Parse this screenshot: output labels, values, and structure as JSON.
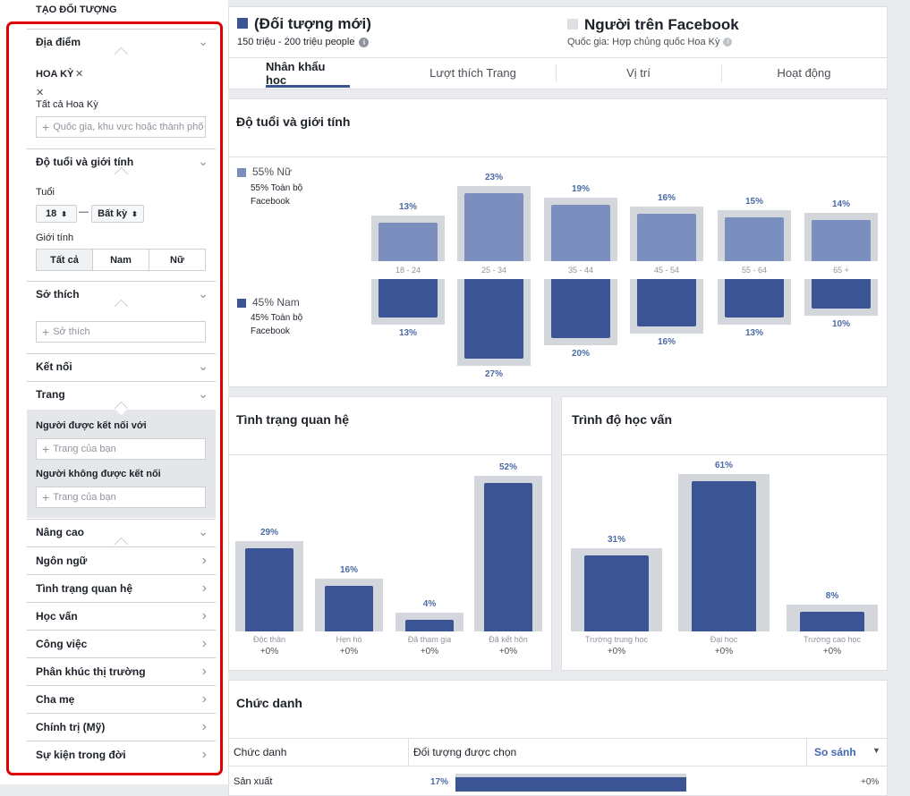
{
  "sidebar": {
    "title": "TẠO ĐỐI TƯỢNG",
    "location": {
      "header": "Địa điểm",
      "country": "HOA KỲ",
      "remove_glyph": "✕",
      "all": "Tất cả Hoa Kỳ",
      "placeholder": "Quốc gia, khu vực hoặc thành phố"
    },
    "age_gender": {
      "header": "Độ tuổi và giới tính",
      "age_label": "Tuổi",
      "age_from": "18",
      "age_to": "Bất kỳ",
      "gender_label": "Giới tính",
      "gender_options": [
        "Tất cả",
        "Nam",
        "Nữ"
      ]
    },
    "interests": {
      "header": "Sở thích",
      "placeholder": "Sở thích"
    },
    "connections": {
      "header": "Kết nối",
      "pages_header": "Trang",
      "connected_label": "Người được kết nối với",
      "connected_placeholder": "Trang của bạn",
      "not_connected_label": "Người không được kết nối",
      "not_connected_placeholder": "Trang của bạn"
    },
    "advanced": {
      "header": "Nâng cao",
      "items": [
        "Ngôn ngữ",
        "Tình trạng quan hệ",
        "Học vấn",
        "Công việc",
        "Phân khúc thị trường",
        "Cha mẹ",
        "Chính trị (Mỹ)",
        "Sự kiện trong đời"
      ]
    }
  },
  "header": {
    "audience_title": "(Đối tượng mới)",
    "audience_size": "150 triệu - 200 triệu people",
    "fb_title": "Người trên Facebook",
    "fb_sub": "Quốc gia: Hợp chủng quốc Hoa Kỳ",
    "tabs": [
      "Nhân khẩu học",
      "Lượt thích Trang",
      "Vị trí",
      "Hoạt động"
    ],
    "active_tab": "Nhân khẩu học"
  },
  "age_gender_panel": {
    "title": "Độ tuổi và giới tính",
    "female_label": "55% Nữ",
    "female_sub": "55% Toàn bộ Facebook",
    "male_label": "45% Nam",
    "male_sub": "45% Toàn bộ Facebook"
  },
  "relationship_panel": {
    "title": "Tình trạng quan hệ"
  },
  "education_panel": {
    "title": "Trình độ học vấn"
  },
  "job_panel": {
    "title": "Chức danh",
    "col1": "Chức danh",
    "col2": "Đối tượng được chọn",
    "col3": "So sánh",
    "row_label": "Sản xuất",
    "row_pct": "17%",
    "row_delta": "+0%"
  },
  "chart_data": [
    {
      "type": "bar",
      "title": "Độ tuổi và giới tính",
      "categories": [
        "18 - 24",
        "25 - 34",
        "35 - 44",
        "45 - 54",
        "55 - 64",
        "65 +"
      ],
      "series": [
        {
          "name": "55% Nữ",
          "values": [
            13,
            23,
            19,
            16,
            15,
            14
          ],
          "labels": [
            "13%",
            "23%",
            "19%",
            "16%",
            "15%",
            "14%"
          ]
        },
        {
          "name": "45% Nam",
          "values": [
            13,
            27,
            20,
            16,
            13,
            10
          ],
          "labels": [
            "13%",
            "27%",
            "20%",
            "16%",
            "13%",
            "10%"
          ]
        }
      ],
      "colors": {
        "female": "#7b8fbf",
        "male": "#3b5594",
        "baseline": "#d3d6db"
      }
    },
    {
      "type": "bar",
      "title": "Tình trạng quan hệ",
      "categories": [
        "Độc thân",
        "Hẹn hò",
        "Đã tham gia",
        "Đã kết hôn"
      ],
      "values": [
        29,
        16,
        4,
        52
      ],
      "labels": [
        "29%",
        "16%",
        "4%",
        "52%"
      ],
      "deltas": [
        "+0%",
        "+0%",
        "+0%",
        "+0%"
      ]
    },
    {
      "type": "bar",
      "title": "Trình độ học vấn",
      "categories": [
        "Trường trung học",
        "Đại học",
        "Trường cao học"
      ],
      "values": [
        31,
        61,
        8
      ],
      "labels": [
        "31%",
        "61%",
        "8%"
      ],
      "deltas": [
        "+0%",
        "+0%",
        "+0%"
      ]
    }
  ]
}
